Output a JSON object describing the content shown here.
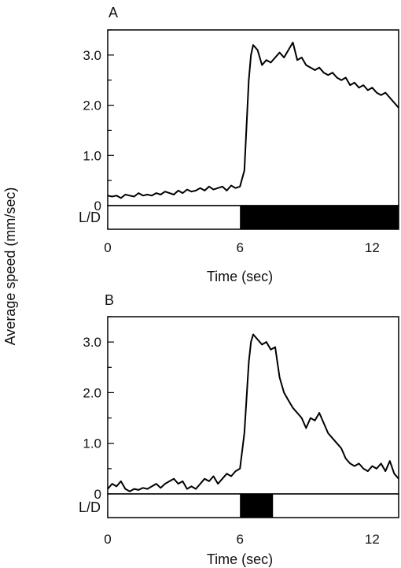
{
  "figure": {
    "ylabel": "Average speed (mm/sec)",
    "ld_label": "L/D"
  },
  "chart_data": [
    {
      "type": "line",
      "panel_label": "A",
      "xlabel": "Time (sec)",
      "xlim": [
        0,
        13.2
      ],
      "ylim": [
        0,
        3.5
      ],
      "x_ticks": [
        0,
        6,
        12
      ],
      "x_tick_labels": [
        "0",
        "6",
        "12"
      ],
      "y_ticks": [
        0,
        1,
        2,
        3
      ],
      "y_tick_labels": [
        "0",
        "1.0",
        "2.0",
        "3.0"
      ],
      "ld_dark_intervals": [
        [
          6,
          13.2
        ]
      ],
      "series": [
        {
          "x": [
            0,
            0.2,
            0.4,
            0.6,
            0.8,
            1.0,
            1.2,
            1.4,
            1.6,
            1.8,
            2.0,
            2.2,
            2.4,
            2.6,
            2.8,
            3.0,
            3.2,
            3.4,
            3.6,
            3.8,
            4.0,
            4.2,
            4.4,
            4.6,
            4.8,
            5.0,
            5.2,
            5.4,
            5.6,
            5.8,
            6.0,
            6.2,
            6.3,
            6.4,
            6.5,
            6.6,
            6.7,
            6.8,
            7.0,
            7.2,
            7.4,
            7.6,
            7.8,
            8.0,
            8.2,
            8.4,
            8.6,
            8.8,
            9.0,
            9.2,
            9.4,
            9.6,
            9.8,
            10.0,
            10.2,
            10.4,
            10.6,
            10.8,
            11.0,
            11.2,
            11.4,
            11.6,
            11.8,
            12.0,
            12.2,
            12.4,
            12.6,
            12.8,
            13.0,
            13.2
          ],
          "y": [
            0.2,
            0.18,
            0.2,
            0.15,
            0.22,
            0.2,
            0.18,
            0.25,
            0.2,
            0.22,
            0.2,
            0.25,
            0.22,
            0.28,
            0.25,
            0.22,
            0.3,
            0.25,
            0.32,
            0.28,
            0.3,
            0.35,
            0.3,
            0.38,
            0.32,
            0.35,
            0.38,
            0.3,
            0.4,
            0.35,
            0.38,
            0.7,
            1.6,
            2.5,
            3.0,
            3.2,
            3.15,
            3.1,
            2.8,
            2.9,
            2.85,
            2.95,
            3.05,
            2.95,
            3.1,
            3.25,
            2.9,
            2.95,
            2.8,
            2.75,
            2.7,
            2.75,
            2.65,
            2.6,
            2.65,
            2.55,
            2.5,
            2.55,
            2.4,
            2.45,
            2.35,
            2.4,
            2.3,
            2.35,
            2.25,
            2.2,
            2.25,
            2.15,
            2.05,
            1.95
          ]
        }
      ]
    },
    {
      "type": "line",
      "panel_label": "B",
      "xlabel": "Time (sec)",
      "xlim": [
        0,
        13.2
      ],
      "ylim": [
        0,
        3.5
      ],
      "x_ticks": [
        0,
        6,
        12
      ],
      "x_tick_labels": [
        "0",
        "6",
        "12"
      ],
      "y_ticks": [
        0,
        1,
        2,
        3
      ],
      "y_tick_labels": [
        "0",
        "1.0",
        "2.0",
        "3.0"
      ],
      "ld_dark_intervals": [
        [
          6,
          7.5
        ]
      ],
      "series": [
        {
          "x": [
            0,
            0.2,
            0.4,
            0.6,
            0.8,
            1.0,
            1.2,
            1.4,
            1.6,
            1.8,
            2.0,
            2.2,
            2.4,
            2.6,
            2.8,
            3.0,
            3.2,
            3.4,
            3.6,
            3.8,
            4.0,
            4.2,
            4.4,
            4.6,
            4.8,
            5.0,
            5.2,
            5.4,
            5.6,
            5.8,
            6.0,
            6.2,
            6.3,
            6.4,
            6.5,
            6.6,
            6.7,
            6.8,
            7.0,
            7.2,
            7.4,
            7.6,
            7.8,
            8.0,
            8.2,
            8.4,
            8.6,
            8.8,
            9.0,
            9.2,
            9.4,
            9.6,
            9.8,
            10.0,
            10.2,
            10.4,
            10.6,
            10.8,
            11.0,
            11.2,
            11.4,
            11.6,
            11.8,
            12.0,
            12.2,
            12.4,
            12.6,
            12.8,
            13.0,
            13.2
          ],
          "y": [
            0.1,
            0.2,
            0.15,
            0.25,
            0.1,
            0.05,
            0.1,
            0.08,
            0.12,
            0.1,
            0.15,
            0.2,
            0.12,
            0.2,
            0.25,
            0.3,
            0.2,
            0.25,
            0.1,
            0.15,
            0.1,
            0.2,
            0.3,
            0.25,
            0.35,
            0.2,
            0.3,
            0.4,
            0.35,
            0.45,
            0.5,
            1.2,
            1.9,
            2.6,
            3.0,
            3.15,
            3.1,
            3.05,
            2.95,
            3.0,
            2.85,
            2.9,
            2.3,
            2.0,
            1.85,
            1.7,
            1.6,
            1.5,
            1.3,
            1.5,
            1.45,
            1.6,
            1.4,
            1.2,
            1.1,
            1.0,
            0.9,
            0.7,
            0.6,
            0.55,
            0.6,
            0.5,
            0.45,
            0.55,
            0.5,
            0.6,
            0.45,
            0.65,
            0.4,
            0.3
          ]
        }
      ]
    }
  ]
}
